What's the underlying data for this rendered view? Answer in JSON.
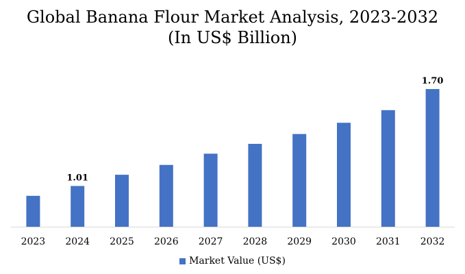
{
  "chart_data": {
    "type": "bar",
    "title": "Global Banana Flour Market Analysis, 2023-2032",
    "subtitle": "(In US$ Billion)",
    "categories": [
      "2023",
      "2024",
      "2025",
      "2026",
      "2027",
      "2028",
      "2029",
      "2030",
      "2031",
      "2032"
    ],
    "series": [
      {
        "name": "Market Value (US$)",
        "values": [
          0.94,
          1.01,
          1.09,
          1.16,
          1.24,
          1.31,
          1.38,
          1.46,
          1.55,
          1.7
        ],
        "color": "#4472C4"
      }
    ],
    "data_labels": [
      {
        "index": 1,
        "text": "1.01"
      },
      {
        "index": 9,
        "text": "1.70"
      }
    ],
    "ylim": [
      0.72,
      1.7
    ],
    "xlabel": "",
    "ylabel": "",
    "grid": false,
    "legend_position": "bottom"
  }
}
